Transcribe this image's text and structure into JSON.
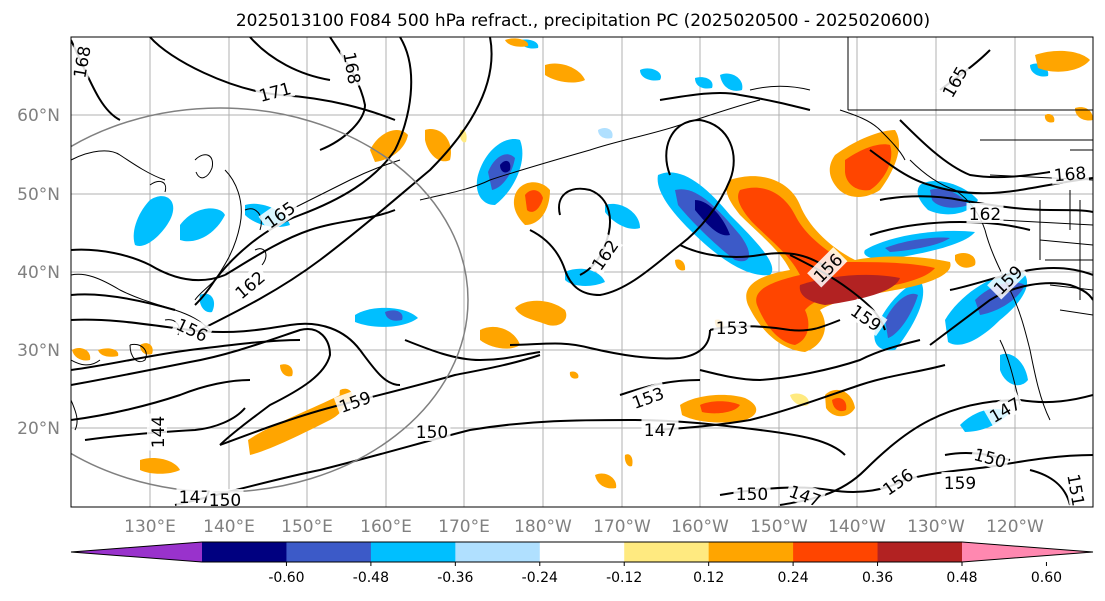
{
  "title": "2025013100 F084 500 hPa refract., precipitation PC (2025020500 - 2025020600)",
  "map": {
    "lat_ticks": [
      "60°N",
      "50°N",
      "40°N",
      "30°N",
      "20°N"
    ],
    "lon_ticks": [
      "130°E",
      "140°E",
      "150°E",
      "160°E",
      "170°E",
      "180°W",
      "170°W",
      "160°W",
      "150°W",
      "140°W",
      "130°W",
      "120°W"
    ],
    "contour_labels": [
      "168",
      "171",
      "168",
      "165",
      "165",
      "162",
      "156",
      "162",
      "156",
      "153",
      "159",
      "159",
      "168",
      "162",
      "159",
      "153",
      "150",
      "147",
      "144",
      "147",
      "150",
      "150",
      "147",
      "156",
      "159",
      "150",
      "147",
      "151"
    ]
  },
  "colorbar": {
    "tick_labels": [
      "-0.60",
      "-0.48",
      "-0.36",
      "-0.24",
      "-0.12",
      "0.12",
      "0.24",
      "0.36",
      "0.48",
      "0.60"
    ],
    "colors": [
      "#9932cc",
      "#000080",
      "#3c5ac8",
      "#00bfff",
      "#b0e0ff",
      "#ffffff",
      "#ffea80",
      "#ffa500",
      "#ff4500",
      "#b22222",
      "#ff88b0"
    ]
  }
}
